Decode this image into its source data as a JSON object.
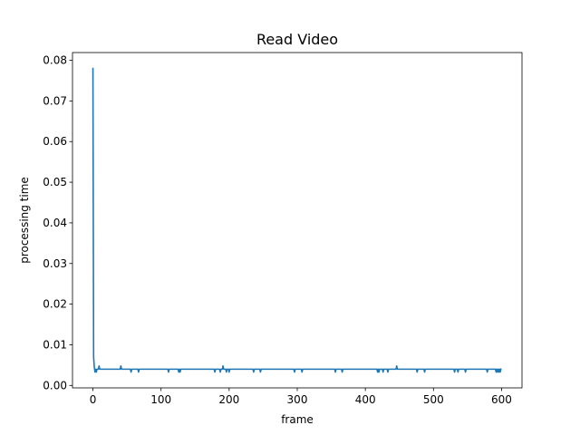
{
  "chart_data": {
    "type": "line",
    "title": "Read Video",
    "xlabel": "frame",
    "ylabel": "processing time",
    "xlim": [
      -30,
      630
    ],
    "ylim": [
      -0.0006,
      0.0819
    ],
    "x_ticks": [
      0,
      100,
      200,
      300,
      400,
      500,
      600
    ],
    "x_tick_labels": [
      "0",
      "100",
      "200",
      "300",
      "400",
      "500",
      "600"
    ],
    "y_ticks": [
      0.0,
      0.01,
      0.02,
      0.03,
      0.04,
      0.05,
      0.06,
      0.07,
      0.08
    ],
    "y_tick_labels": [
      "0.00",
      "0.01",
      "0.02",
      "0.03",
      "0.04",
      "0.05",
      "0.06",
      "0.07",
      "0.08"
    ],
    "grid": false,
    "color": "#1f77b4",
    "series": [
      {
        "values_x": [
          0,
          1,
          2,
          3,
          4,
          5,
          6,
          7,
          8,
          9,
          10,
          11,
          12,
          40,
          41,
          42,
          55,
          56,
          57,
          66,
          67,
          68,
          110,
          111,
          112,
          125,
          126,
          127,
          128,
          129,
          178,
          179,
          180,
          186,
          187,
          188,
          190,
          191,
          192,
          195,
          196,
          197,
          199,
          200,
          201,
          235,
          236,
          237,
          245,
          246,
          247,
          295,
          296,
          297,
          298,
          306,
          307,
          308,
          355,
          356,
          357,
          365,
          366,
          367,
          417,
          418,
          419,
          420,
          421,
          425,
          426,
          427,
          432,
          433,
          434,
          445,
          446,
          447,
          475,
          476,
          477,
          486,
          487,
          488,
          530,
          531,
          532,
          535,
          536,
          537,
          546,
          547,
          548,
          578,
          579,
          580,
          591,
          592,
          593,
          594,
          595,
          596,
          597,
          598,
          599
        ],
        "values_y": [
          0.078,
          0.007,
          0.0045,
          0.0033,
          0.004,
          0.0033,
          0.004,
          0.004,
          0.004,
          0.0048,
          0.004,
          0.004,
          0.004,
          0.004,
          0.0048,
          0.004,
          0.004,
          0.0033,
          0.004,
          0.004,
          0.0033,
          0.004,
          0.004,
          0.0033,
          0.004,
          0.004,
          0.0033,
          0.004,
          0.0033,
          0.004,
          0.004,
          0.0033,
          0.004,
          0.004,
          0.0033,
          0.004,
          0.004,
          0.0048,
          0.004,
          0.004,
          0.0033,
          0.004,
          0.004,
          0.0033,
          0.004,
          0.004,
          0.0033,
          0.004,
          0.004,
          0.0033,
          0.004,
          0.004,
          0.0033,
          0.004,
          0.004,
          0.004,
          0.0033,
          0.004,
          0.004,
          0.0033,
          0.004,
          0.004,
          0.0033,
          0.004,
          0.004,
          0.0033,
          0.004,
          0.0033,
          0.004,
          0.004,
          0.0033,
          0.004,
          0.004,
          0.0033,
          0.004,
          0.004,
          0.0048,
          0.004,
          0.004,
          0.0033,
          0.004,
          0.004,
          0.0033,
          0.004,
          0.004,
          0.0033,
          0.004,
          0.004,
          0.0033,
          0.004,
          0.004,
          0.0033,
          0.004,
          0.004,
          0.0033,
          0.004,
          0.004,
          0.0033,
          0.004,
          0.0033,
          0.004,
          0.0033,
          0.004,
          0.0033,
          0.004
        ]
      }
    ]
  }
}
